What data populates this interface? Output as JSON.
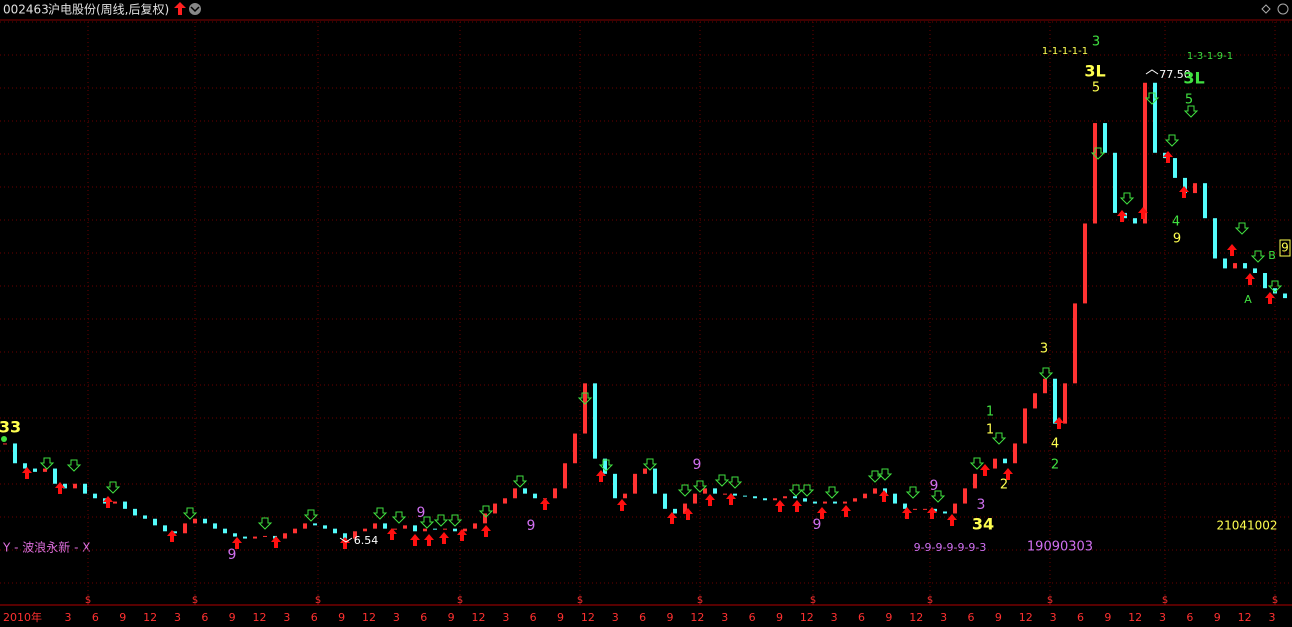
{
  "header": {
    "code": "002463",
    "name": "沪电股份(周线,后复权)"
  },
  "indicator_label": "Y - 波浪永新 - X",
  "annotations": [
    "33",
    "9",
    "6.54",
    "9",
    "9",
    "9",
    "9",
    "9",
    "3",
    "34",
    "9-9-9-9-9-9-3",
    "19090303",
    "21041002",
    "1",
    "1",
    "2",
    "3",
    "4",
    "2",
    "1-1-1-1-1",
    "3",
    "3L",
    "5",
    "77.50",
    "1-3-1-9-1",
    "3L",
    "5",
    "4",
    "9",
    "A",
    "B",
    "9"
  ],
  "chart_data": {
    "type": "candle-line",
    "up_color": "#ff3232",
    "down_color": "#54fcfc",
    "ylim": [
      -2,
      85.5
    ],
    "values": [
      21.7,
      18.7,
      17.9,
      17.4,
      17.9,
      15.6,
      14.9,
      15.6,
      14.1,
      13.4,
      12.6,
      12.9,
      11.8,
      10.8,
      10.3,
      9.3,
      8.4,
      8.1,
      9.6,
      10.3,
      9.6,
      8.8,
      8.1,
      7.6,
      7.3,
      7.6,
      7.7,
      7.3,
      8.1,
      8.8,
      9.6,
      9.3,
      8.8,
      8.1,
      7.3,
      8.4,
      8.8,
      9.6,
      8.8,
      8.8,
      9.3,
      8.4,
      8.8,
      8.7,
      8.8,
      8.4,
      8.8,
      9.6,
      11.1,
      12.6,
      13.4,
      14.9,
      14.1,
      13.4,
      13.4,
      14.9,
      18.7,
      23.2,
      30.8,
      19.4,
      17.1,
      13.4,
      14.1,
      17.1,
      17.9,
      14.1,
      11.8,
      11.1,
      12.6,
      14.1,
      14.9,
      14.1,
      14.1,
      13.8,
      13.7,
      13.4,
      13.1,
      13.4,
      13.7,
      13.4,
      12.9,
      12.6,
      12.9,
      12.6,
      12.9,
      13.4,
      14.1,
      14.9,
      14.1,
      12.6,
      11.8,
      11.8,
      11.8,
      11.4,
      11.1,
      12.6,
      14.9,
      17.1,
      17.9,
      19.4,
      18.7,
      21.7,
      27.0,
      29.3,
      31.5,
      24.7,
      30.8,
      42.9,
      55.0,
      70.2,
      65.7,
      56.6,
      55.8,
      55.0,
      76.3,
      65.7,
      64.9,
      61.9,
      59.6,
      61.1,
      55.8,
      49.7,
      48.2,
      49.0,
      48.2,
      47.5,
      45.2,
      44.4,
      43.7
    ],
    "x_labels": [
      "2010年",
      "3",
      "6",
      "9",
      "12",
      "3",
      "6",
      "9",
      "12",
      "3",
      "6",
      "9",
      "12",
      "3",
      "6",
      "9",
      "12",
      "3",
      "6",
      "9",
      "12",
      "3",
      "6",
      "9",
      "12",
      "3",
      "6",
      "9",
      "12",
      "3",
      "6",
      "9",
      "12",
      "3",
      "6",
      "9",
      "12",
      "3",
      "6",
      "9",
      "12",
      "3",
      "6",
      "9",
      "12",
      "3"
    ]
  }
}
